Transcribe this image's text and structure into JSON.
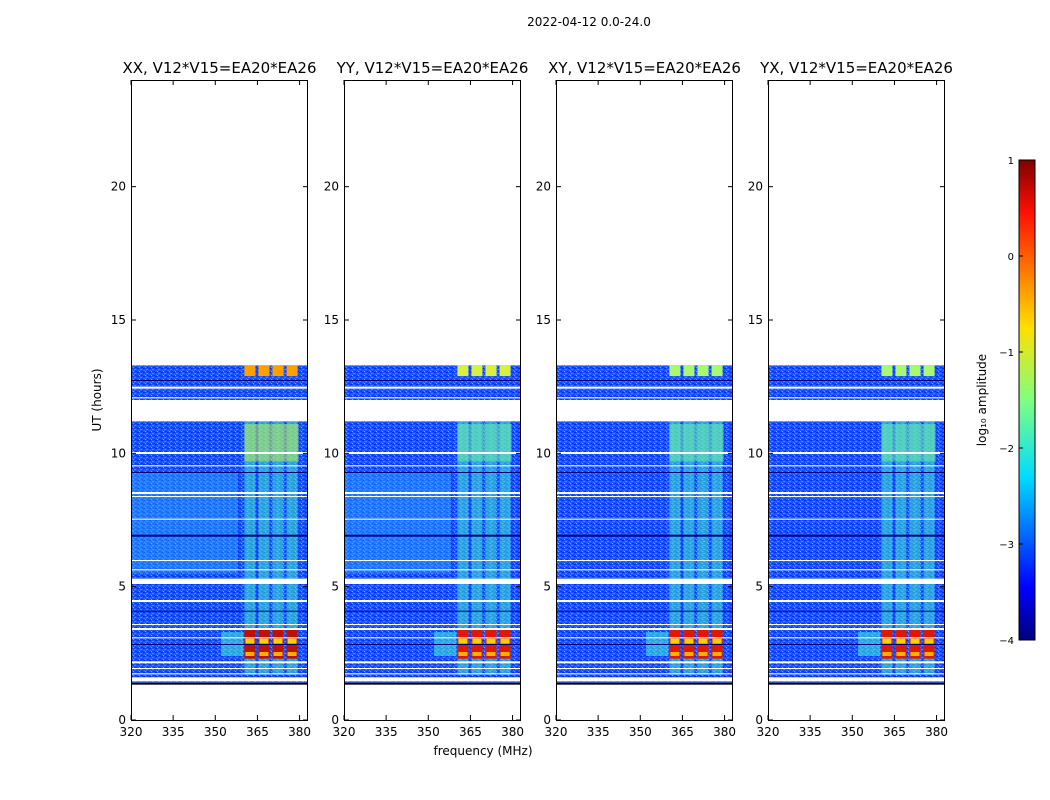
{
  "figure": {
    "suptitle": "2022-04-12 0.0-24.0",
    "xlabel": "frequency (MHz)",
    "ylabel": "UT (hours)"
  },
  "chart_data": {
    "type": "heatmap",
    "x_ticks": [
      320,
      335,
      350,
      365,
      380
    ],
    "xlim": [
      320,
      383
    ],
    "y_ticks": [
      0,
      5,
      10,
      15,
      20
    ],
    "ylim": [
      0,
      24
    ],
    "panels": [
      {
        "title": "XX, V12*V15=EA20*EA26",
        "pol": "XX"
      },
      {
        "title": "YY, V12*V15=EA20*EA26",
        "pol": "YY"
      },
      {
        "title": "XY, V12*V15=EA20*EA26",
        "pol": "XY"
      },
      {
        "title": "YX, V12*V15=EA20*EA26",
        "pol": "YX"
      }
    ],
    "data_time_ranges_hours": [
      [
        1.4,
        13.3
      ]
    ],
    "flagged_gaps_hours": [
      [
        1.45,
        1.6
      ],
      [
        11.2,
        12.0
      ],
      [
        5.1,
        5.3
      ]
    ],
    "rfi_band_mhz": [
      360,
      380
    ],
    "strong_emission_hours": [
      [
        2.3,
        3.4
      ],
      [
        12.4,
        13.3
      ]
    ],
    "colorbar": {
      "label": "log₁₀ amplitude",
      "range": [
        -4,
        1
      ],
      "ticks": [
        "1",
        "0",
        "−1",
        "−2",
        "−3",
        "−4"
      ],
      "colormap": "jet"
    }
  }
}
